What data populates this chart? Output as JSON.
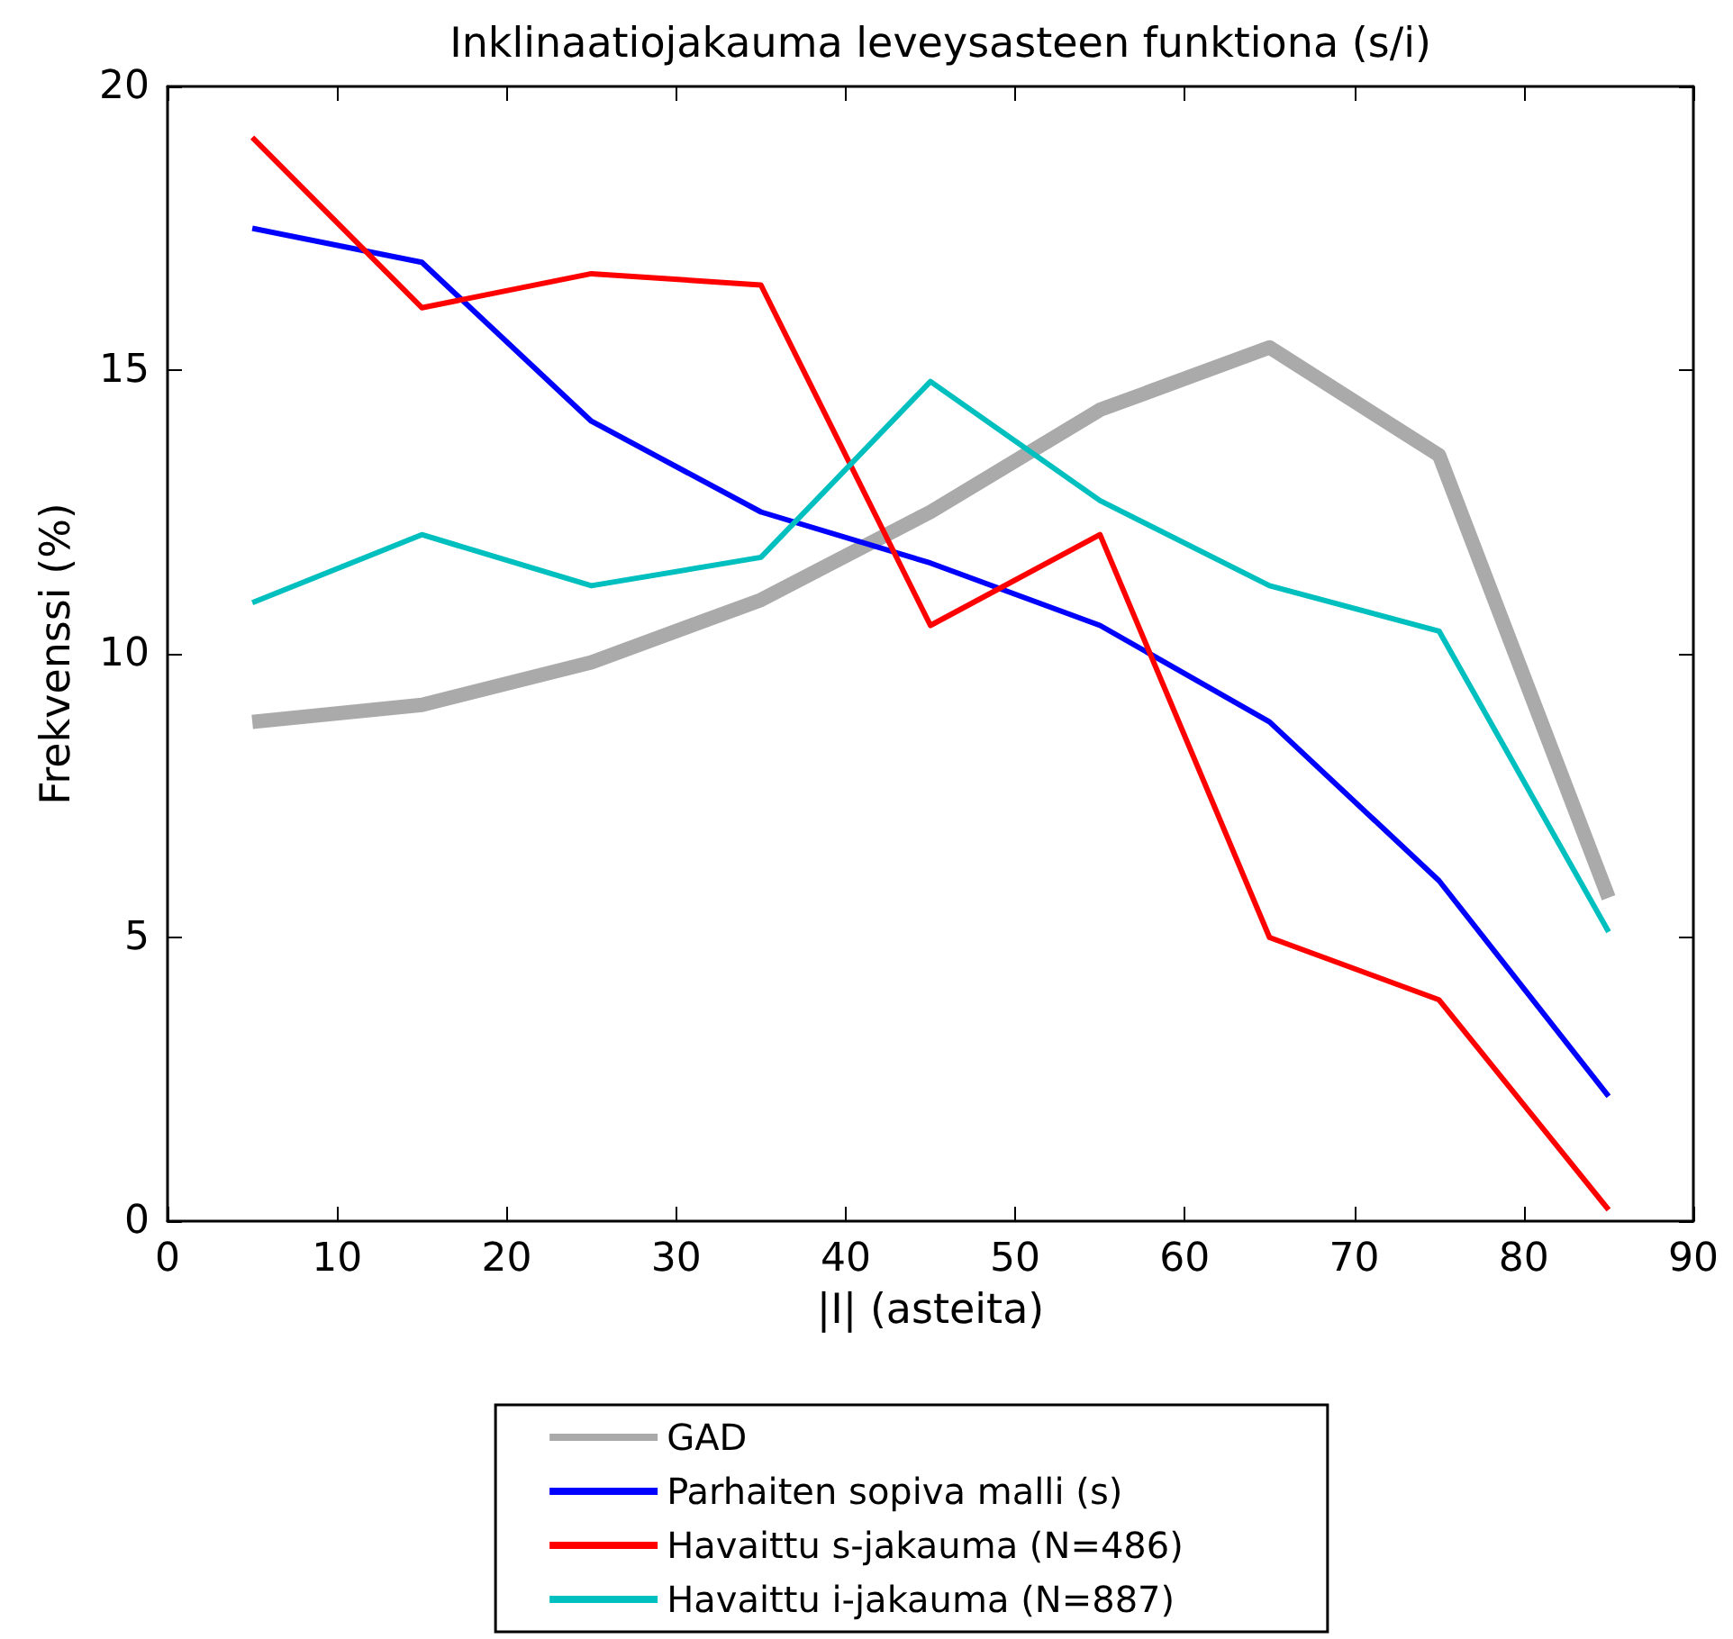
{
  "chart_data": {
    "type": "line",
    "title": "Inklinaatiojakauma leveysasteen funktiona (s/i)",
    "xlabel": "|I| (asteita)",
    "ylabel": "Frekvenssi (%)",
    "x": [
      5,
      15,
      25,
      35,
      45,
      55,
      65,
      75,
      85
    ],
    "series": [
      {
        "name": "GAD",
        "color": "#aaaaaa",
        "values": [
          8.8,
          9.1,
          9.85,
          10.95,
          12.5,
          14.3,
          15.4,
          13.5,
          5.7
        ]
      },
      {
        "name": "Parhaiten sopiva malli (s)",
        "color": "#0000ff",
        "values": [
          17.5,
          16.9,
          14.1,
          12.5,
          11.6,
          10.5,
          8.8,
          6.0,
          2.2
        ]
      },
      {
        "name": "Havaittu s-jakauma (N=486)",
        "color": "#ff0000",
        "values": [
          19.1,
          16.1,
          16.7,
          16.5,
          10.5,
          12.1,
          5.0,
          3.9,
          0.2
        ]
      },
      {
        "name": "Havaittu i-jakauma (N=887)",
        "color": "#00bfbf",
        "values": [
          10.9,
          12.1,
          11.2,
          11.7,
          14.8,
          12.7,
          11.2,
          10.4,
          5.1
        ]
      }
    ],
    "xlim": [
      0,
      90
    ],
    "xticks": [
      0,
      10,
      20,
      30,
      40,
      50,
      60,
      70,
      80,
      90
    ],
    "ylim": [
      0,
      20
    ],
    "yticks": [
      0,
      5,
      10,
      15,
      20
    ],
    "grid": false,
    "legend": "bottom",
    "marker": "none",
    "line_style": "solid"
  }
}
